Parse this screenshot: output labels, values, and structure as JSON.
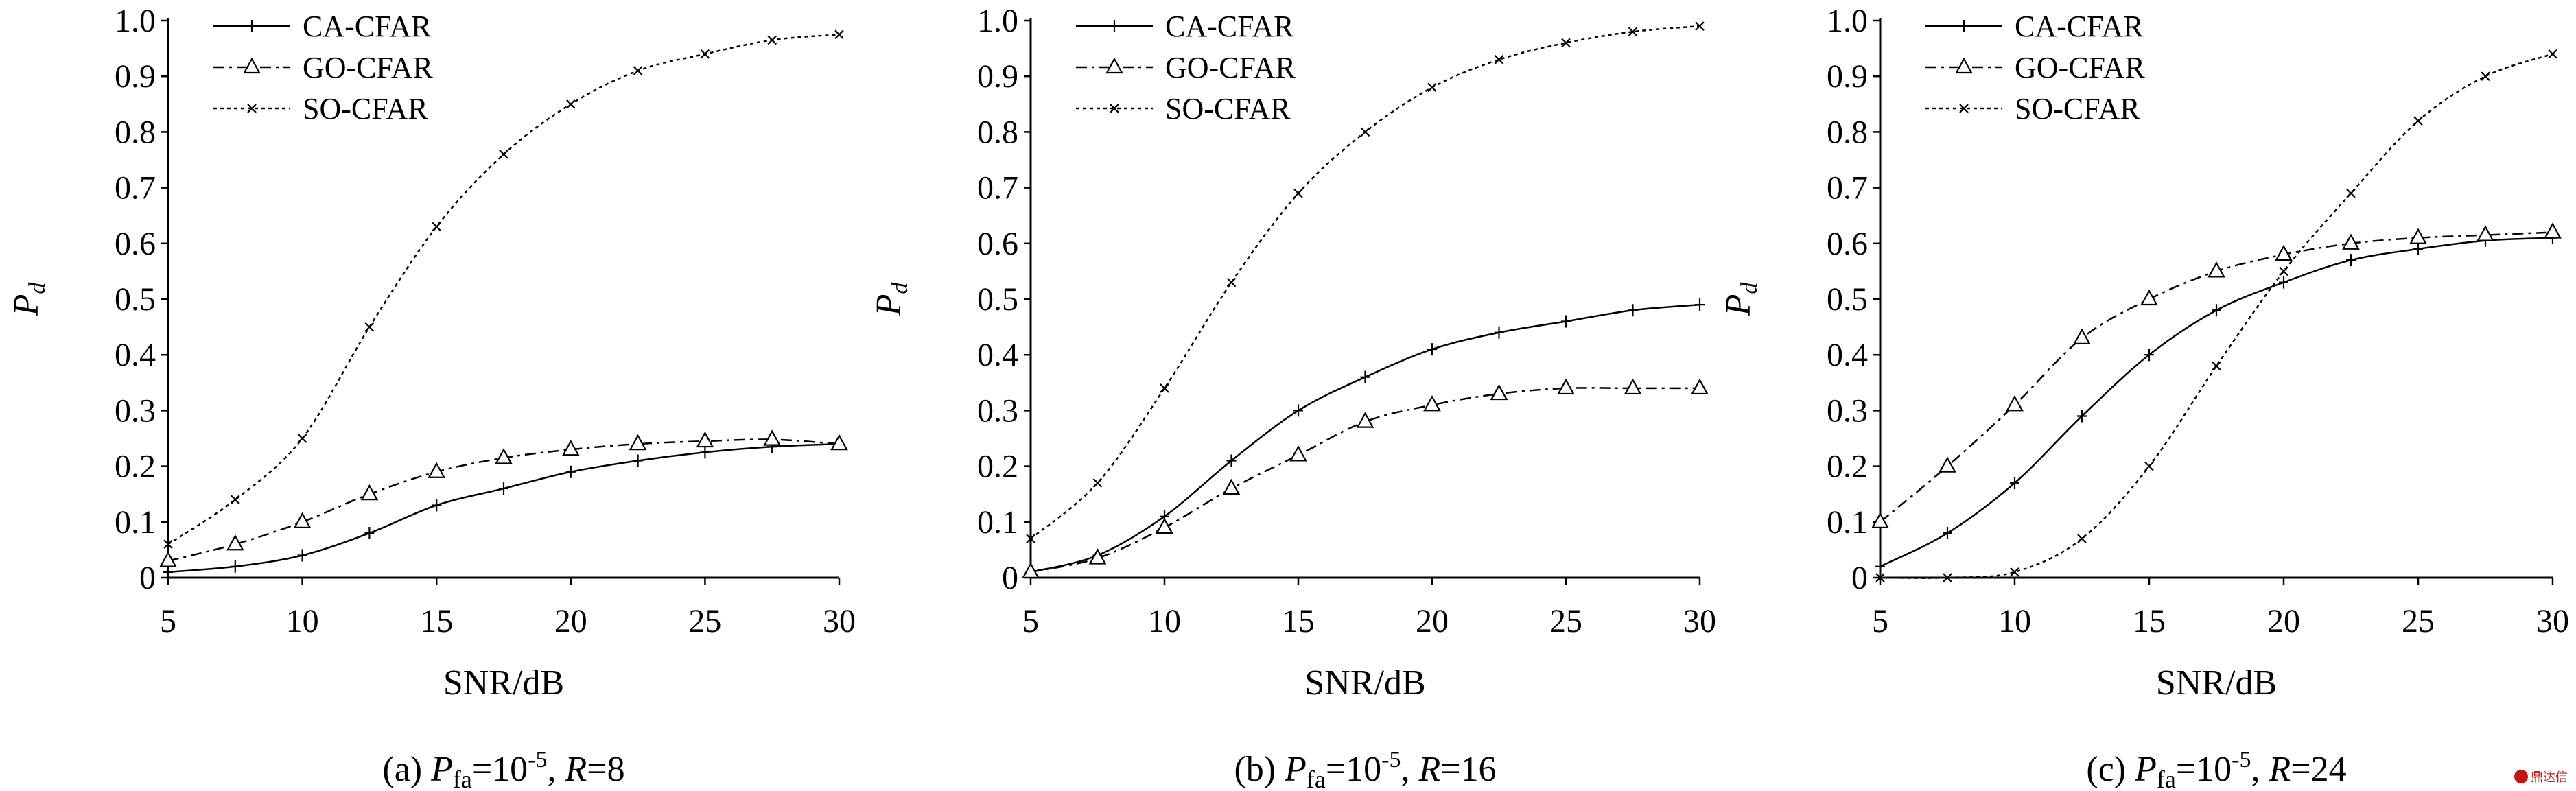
{
  "figure": {
    "watermark": "鼎达信"
  },
  "chart_data": [
    {
      "type": "line",
      "caption": {
        "prefix": "(a)",
        "p": "P",
        "p_sub": "fa",
        "eq": "=10",
        "exp": "-5",
        "r": "R",
        "r_value": "=8"
      },
      "xlabel": "SNR/dB",
      "ylabel": {
        "main": "P",
        "sub": "d"
      },
      "xlim": [
        5,
        30
      ],
      "ylim": [
        0,
        1.0
      ],
      "x_ticks": [
        "5",
        "10",
        "15",
        "20",
        "25",
        "30"
      ],
      "y_ticks": [
        "0",
        "0.1",
        "0.2",
        "0.3",
        "0.4",
        "0.5",
        "0.6",
        "0.7",
        "0.8",
        "0.9",
        "1.0"
      ],
      "legend_position": "top-left",
      "x": [
        5,
        7.5,
        10,
        12.5,
        15,
        17.5,
        20,
        22.5,
        25,
        27.5,
        30
      ],
      "series": [
        {
          "name": "CA-CFAR",
          "marker": "plus",
          "dash": "",
          "values": [
            0.01,
            0.02,
            0.04,
            0.08,
            0.13,
            0.16,
            0.19,
            0.21,
            0.225,
            0.235,
            0.24
          ]
        },
        {
          "name": "GO-CFAR",
          "marker": "triangle",
          "dash": "16 7 4 7",
          "values": [
            0.03,
            0.06,
            0.1,
            0.15,
            0.19,
            0.215,
            0.23,
            0.24,
            0.245,
            0.248,
            0.24
          ]
        },
        {
          "name": "SO-CFAR",
          "marker": "x",
          "dash": "5 5",
          "values": [
            0.06,
            0.14,
            0.25,
            0.45,
            0.63,
            0.76,
            0.85,
            0.91,
            0.94,
            0.965,
            0.975
          ]
        }
      ]
    },
    {
      "type": "line",
      "caption": {
        "prefix": "(b)",
        "p": "P",
        "p_sub": "fa",
        "eq": "=10",
        "exp": "-5",
        "r": "R",
        "r_value": "=16"
      },
      "xlabel": "SNR/dB",
      "ylabel": {
        "main": "P",
        "sub": "d"
      },
      "xlim": [
        5,
        30
      ],
      "ylim": [
        0,
        1.0
      ],
      "x_ticks": [
        "5",
        "10",
        "15",
        "20",
        "25",
        "30"
      ],
      "y_ticks": [
        "0",
        "0.1",
        "0.2",
        "0.3",
        "0.4",
        "0.5",
        "0.6",
        "0.7",
        "0.8",
        "0.9",
        "1.0"
      ],
      "legend_position": "top-left",
      "x": [
        5,
        7.5,
        10,
        12.5,
        15,
        17.5,
        20,
        22.5,
        25,
        27.5,
        30
      ],
      "series": [
        {
          "name": "CA-CFAR",
          "marker": "plus",
          "dash": "",
          "values": [
            0.01,
            0.04,
            0.11,
            0.21,
            0.3,
            0.36,
            0.41,
            0.44,
            0.46,
            0.48,
            0.49
          ]
        },
        {
          "name": "GO-CFAR",
          "marker": "triangle",
          "dash": "16 7 4 7",
          "values": [
            0.01,
            0.035,
            0.09,
            0.16,
            0.22,
            0.28,
            0.31,
            0.33,
            0.34,
            0.34,
            0.34
          ]
        },
        {
          "name": "SO-CFAR",
          "marker": "x",
          "dash": "5 5",
          "values": [
            0.07,
            0.17,
            0.34,
            0.53,
            0.69,
            0.8,
            0.88,
            0.93,
            0.96,
            0.98,
            0.99
          ]
        }
      ]
    },
    {
      "type": "line",
      "caption": {
        "prefix": "(c)",
        "p": "P",
        "p_sub": "fa",
        "eq": "=10",
        "exp": "-5",
        "r": "R",
        "r_value": "=24"
      },
      "xlabel": "SNR/dB",
      "ylabel": {
        "main": "P",
        "sub": "d"
      },
      "xlim": [
        5,
        30
      ],
      "ylim": [
        0,
        1.0
      ],
      "x_ticks": [
        "5",
        "10",
        "15",
        "20",
        "25",
        "30"
      ],
      "y_ticks": [
        "0",
        "0.1",
        "0.2",
        "0.3",
        "0.4",
        "0.5",
        "0.6",
        "0.7",
        "0.8",
        "0.9",
        "1.0"
      ],
      "legend_position": "top-left",
      "x": [
        5,
        7.5,
        10,
        12.5,
        15,
        17.5,
        20,
        22.5,
        25,
        27.5,
        30
      ],
      "series": [
        {
          "name": "CA-CFAR",
          "marker": "plus",
          "dash": "",
          "values": [
            0.02,
            0.08,
            0.17,
            0.29,
            0.4,
            0.48,
            0.53,
            0.57,
            0.59,
            0.605,
            0.61
          ]
        },
        {
          "name": "GO-CFAR",
          "marker": "triangle",
          "dash": "16 7 4 7",
          "values": [
            0.1,
            0.2,
            0.31,
            0.43,
            0.5,
            0.55,
            0.58,
            0.6,
            0.61,
            0.615,
            0.62
          ]
        },
        {
          "name": "SO-CFAR",
          "marker": "x",
          "dash": "5 5",
          "values": [
            0.0,
            0.0,
            0.01,
            0.07,
            0.2,
            0.38,
            0.55,
            0.69,
            0.82,
            0.9,
            0.94
          ]
        }
      ]
    }
  ]
}
